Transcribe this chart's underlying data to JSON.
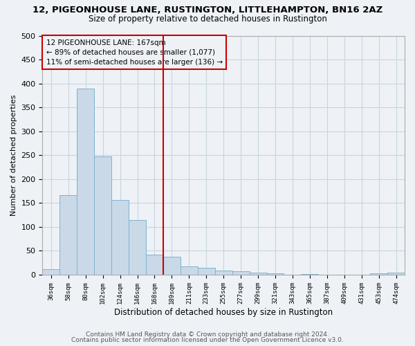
{
  "title": "12, PIGEONHOUSE LANE, RUSTINGTON, LITTLEHAMPTON, BN16 2AZ",
  "subtitle": "Size of property relative to detached houses in Rustington",
  "xlabel": "Distribution of detached houses by size in Rustington",
  "ylabel": "Number of detached properties",
  "categories": [
    "36sqm",
    "58sqm",
    "80sqm",
    "102sqm",
    "124sqm",
    "146sqm",
    "168sqm",
    "189sqm",
    "211sqm",
    "233sqm",
    "255sqm",
    "277sqm",
    "299sqm",
    "321sqm",
    "343sqm",
    "365sqm",
    "387sqm",
    "409sqm",
    "431sqm",
    "453sqm",
    "474sqm"
  ],
  "values": [
    12,
    167,
    390,
    248,
    156,
    115,
    42,
    38,
    18,
    14,
    9,
    7,
    5,
    3,
    0,
    2,
    0,
    0,
    0,
    3,
    5
  ],
  "bar_color": "#c9d9e8",
  "bar_edge_color": "#7fb3cc",
  "ref_line_index": 6,
  "ref_line_label": "12 PIGEONHOUSE LANE: 167sqm",
  "ref_line_pct": "89% of detached houses are smaller (1,077)",
  "ref_line_pct2": "11% of semi-detached houses are larger (136)",
  "ylim": [
    0,
    500
  ],
  "yticks": [
    0,
    50,
    100,
    150,
    200,
    250,
    300,
    350,
    400,
    450,
    500
  ],
  "annotation_box_color": "#cc0000",
  "ref_line_color": "#cc0000",
  "grid_color": "#c8d4de",
  "bg_color": "#eef2f6",
  "footer1": "Contains HM Land Registry data © Crown copyright and database right 2024.",
  "footer2": "Contains public sector information licensed under the Open Government Licence v3.0."
}
